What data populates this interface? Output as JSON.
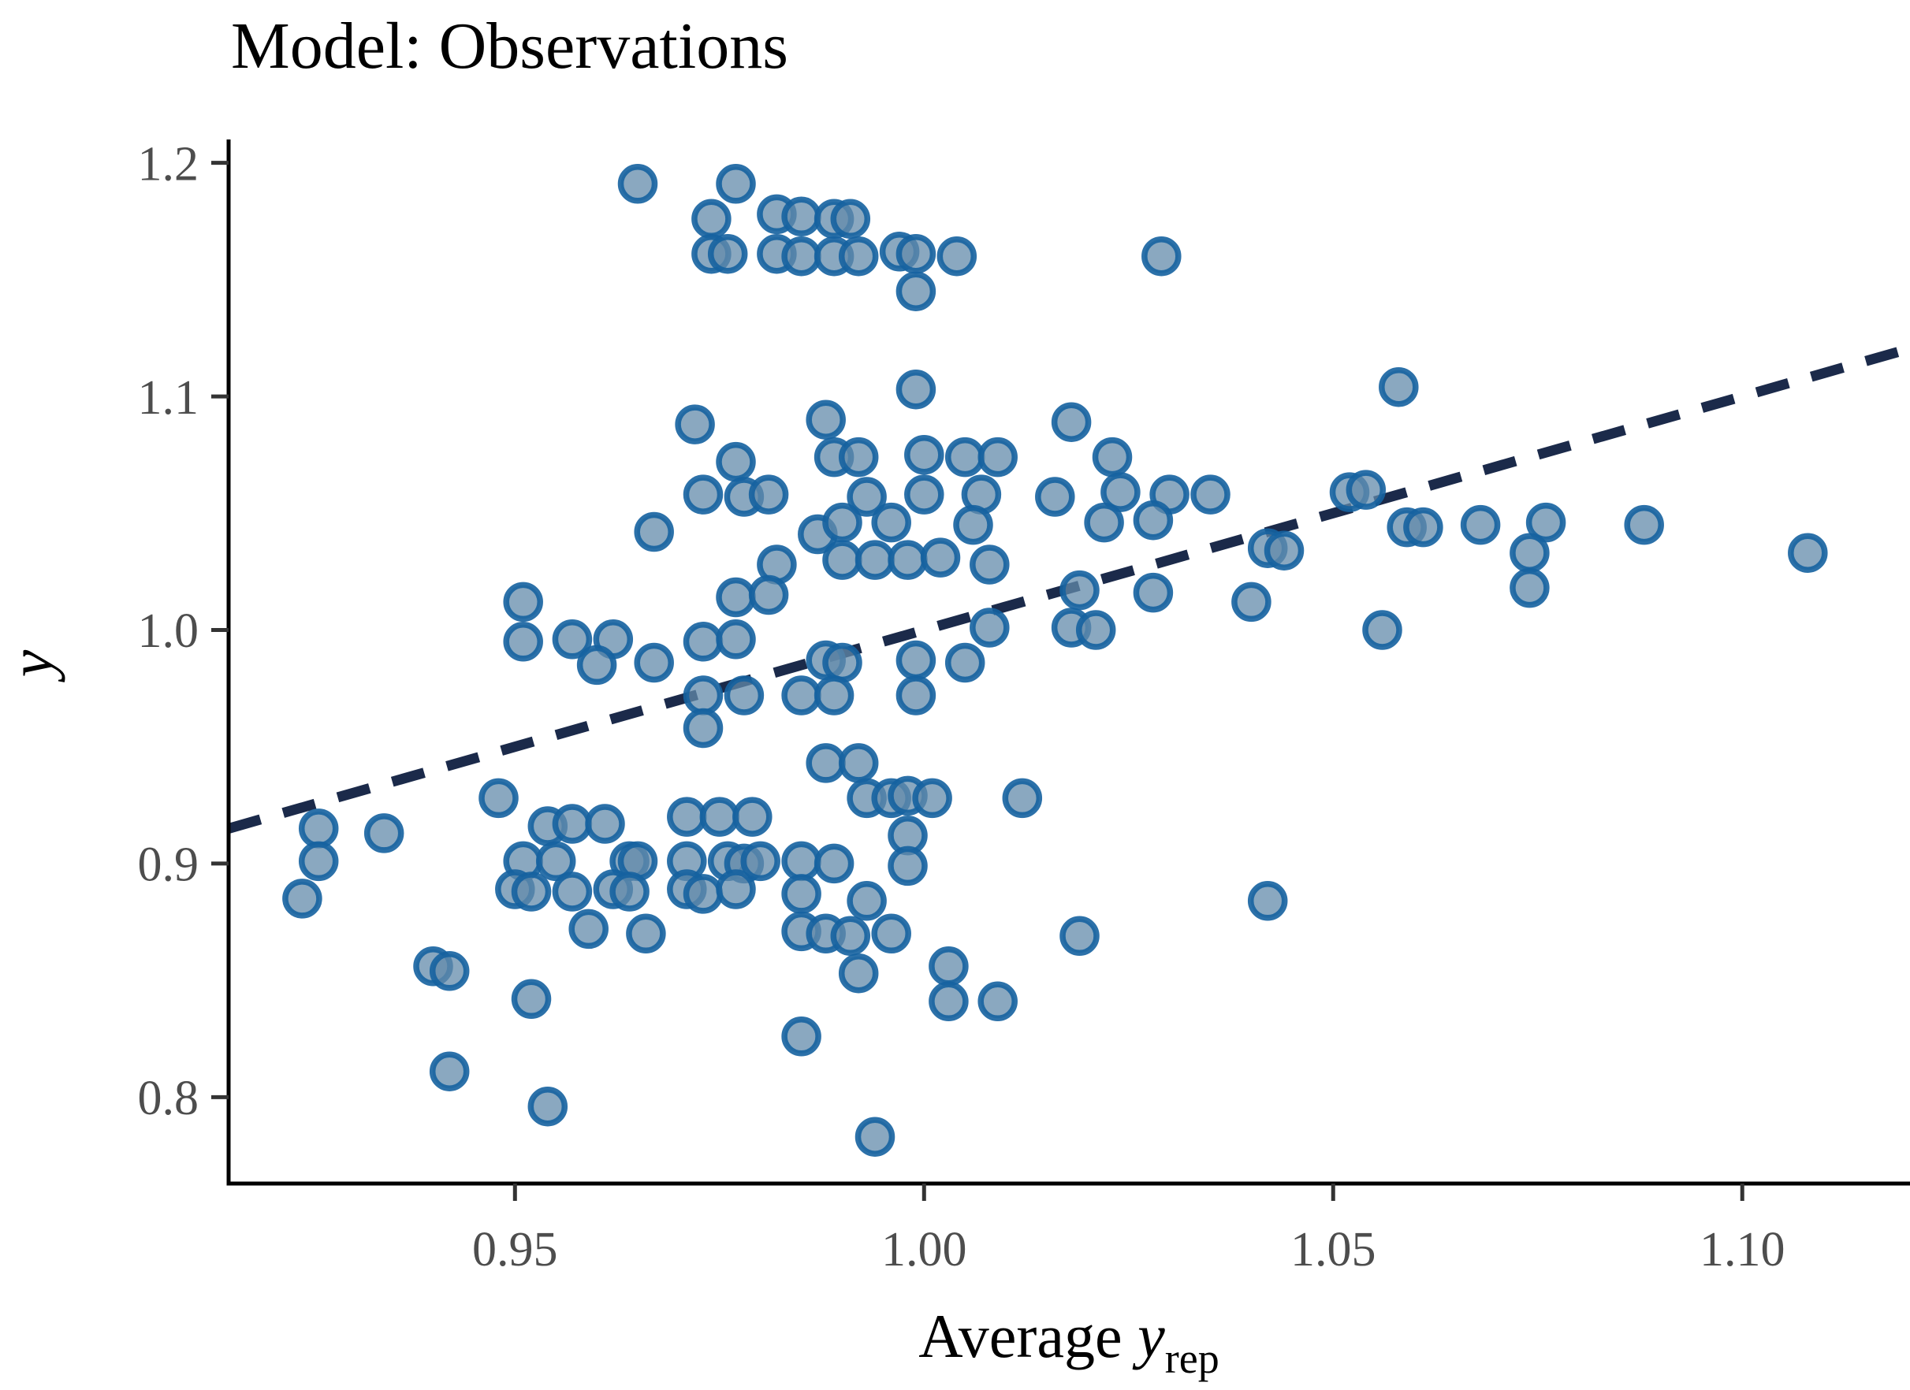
{
  "chart_data": {
    "type": "scatter",
    "title": "Model: Observations",
    "xlabel": "Average y_rep",
    "xlabel_parts": {
      "prefix": "Average ",
      "variable": "y",
      "subscript": "rep"
    },
    "ylabel": "y",
    "xlim": [
      0.915,
      1.1205
    ],
    "ylim": [
      0.763,
      1.21
    ],
    "x_ticks": [
      {
        "value": 0.95,
        "label": "0.95"
      },
      {
        "value": 1.0,
        "label": "1.00"
      },
      {
        "value": 1.05,
        "label": "1.05"
      },
      {
        "value": 1.1,
        "label": "1.10"
      }
    ],
    "y_ticks": [
      {
        "value": 0.8,
        "label": "0.8"
      },
      {
        "value": 0.9,
        "label": "0.9"
      },
      {
        "value": 1.0,
        "label": "1.0"
      },
      {
        "value": 1.1,
        "label": "1.1"
      },
      {
        "value": 1.2,
        "label": "1.2"
      }
    ],
    "grid": "off",
    "legend": "none",
    "reference_line": {
      "type": "identity y = x",
      "style": "dashed",
      "color": "#1b2a4a",
      "width": 13,
      "dash": [
        42,
        30
      ],
      "x1": 0.915,
      "y1": 0.915,
      "x2": 1.1205,
      "y2": 1.1205
    },
    "point_style": {
      "radius": 21.5,
      "stroke_width": 7.5,
      "fill": "#638bab",
      "fill_opacity": 0.75,
      "stroke": "#1562a0",
      "stroke_opacity": 0.9
    },
    "axis_style": {
      "line_color": "#000000",
      "tick_color": "#333333",
      "label_color": "#4d4d4d"
    },
    "points": [
      [
        0.965,
        1.191
      ],
      [
        0.977,
        1.191
      ],
      [
        0.974,
        1.176
      ],
      [
        0.982,
        1.178
      ],
      [
        0.985,
        1.177
      ],
      [
        0.989,
        1.176
      ],
      [
        0.991,
        1.176
      ],
      [
        0.974,
        1.161
      ],
      [
        0.976,
        1.161
      ],
      [
        0.982,
        1.161
      ],
      [
        0.985,
        1.16
      ],
      [
        0.989,
        1.16
      ],
      [
        0.992,
        1.16
      ],
      [
        0.997,
        1.162
      ],
      [
        0.999,
        1.161
      ],
      [
        1.004,
        1.16
      ],
      [
        1.029,
        1.16
      ],
      [
        0.999,
        1.145
      ],
      [
        0.999,
        1.103
      ],
      [
        1.058,
        1.104
      ],
      [
        0.972,
        1.088
      ],
      [
        0.988,
        1.09
      ],
      [
        1.018,
        1.089
      ],
      [
        0.977,
        1.072
      ],
      [
        0.989,
        1.074
      ],
      [
        0.992,
        1.074
      ],
      [
        1.0,
        1.075
      ],
      [
        1.005,
        1.074
      ],
      [
        1.009,
        1.074
      ],
      [
        1.023,
        1.074
      ],
      [
        0.973,
        1.058
      ],
      [
        0.978,
        1.057
      ],
      [
        0.981,
        1.058
      ],
      [
        0.993,
        1.057
      ],
      [
        1.0,
        1.058
      ],
      [
        1.007,
        1.058
      ],
      [
        1.016,
        1.057
      ],
      [
        1.024,
        1.059
      ],
      [
        1.03,
        1.058
      ],
      [
        1.035,
        1.058
      ],
      [
        1.052,
        1.059
      ],
      [
        0.967,
        1.042
      ],
      [
        0.987,
        1.041
      ],
      [
        0.99,
        1.046
      ],
      [
        0.996,
        1.046
      ],
      [
        1.006,
        1.045
      ],
      [
        1.022,
        1.046
      ],
      [
        1.028,
        1.047
      ],
      [
        1.042,
        1.035
      ],
      [
        1.044,
        1.034
      ],
      [
        1.059,
        1.044
      ],
      [
        1.061,
        1.044
      ],
      [
        1.068,
        1.045
      ],
      [
        1.076,
        1.046
      ],
      [
        1.088,
        1.045
      ],
      [
        1.074,
        1.033
      ],
      [
        1.074,
        1.018
      ],
      [
        1.108,
        1.033
      ],
      [
        1.054,
        1.06
      ],
      [
        0.982,
        1.028
      ],
      [
        0.99,
        1.03
      ],
      [
        0.994,
        1.03
      ],
      [
        0.998,
        1.03
      ],
      [
        1.002,
        1.031
      ],
      [
        1.008,
        1.028
      ],
      [
        0.951,
        1.012
      ],
      [
        0.977,
        1.014
      ],
      [
        0.981,
        1.015
      ],
      [
        1.019,
        1.017
      ],
      [
        1.028,
        1.016
      ],
      [
        1.04,
        1.012
      ],
      [
        1.008,
        1.001
      ],
      [
        1.018,
        1.001
      ],
      [
        1.021,
        1.0
      ],
      [
        1.056,
        1.0
      ],
      [
        0.951,
        0.995
      ],
      [
        0.957,
        0.996
      ],
      [
        0.962,
        0.996
      ],
      [
        0.973,
        0.995
      ],
      [
        0.977,
        0.996
      ],
      [
        0.96,
        0.985
      ],
      [
        0.967,
        0.986
      ],
      [
        0.988,
        0.987
      ],
      [
        0.99,
        0.986
      ],
      [
        0.999,
        0.987
      ],
      [
        1.005,
        0.986
      ],
      [
        0.973,
        0.972
      ],
      [
        0.978,
        0.972
      ],
      [
        0.985,
        0.972
      ],
      [
        0.989,
        0.972
      ],
      [
        0.999,
        0.972
      ],
      [
        0.973,
        0.958
      ],
      [
        0.988,
        0.943
      ],
      [
        0.992,
        0.943
      ],
      [
        0.948,
        0.928
      ],
      [
        0.993,
        0.928
      ],
      [
        0.996,
        0.928
      ],
      [
        0.998,
        0.929
      ],
      [
        1.001,
        0.928
      ],
      [
        1.012,
        0.928
      ],
      [
        0.926,
        0.915
      ],
      [
        0.934,
        0.913
      ],
      [
        0.954,
        0.916
      ],
      [
        0.957,
        0.917
      ],
      [
        0.961,
        0.917
      ],
      [
        0.971,
        0.92
      ],
      [
        0.975,
        0.92
      ],
      [
        0.979,
        0.92
      ],
      [
        0.998,
        0.912
      ],
      [
        0.926,
        0.901
      ],
      [
        0.951,
        0.901
      ],
      [
        0.955,
        0.901
      ],
      [
        0.964,
        0.901
      ],
      [
        0.965,
        0.901
      ],
      [
        0.971,
        0.901
      ],
      [
        0.976,
        0.901
      ],
      [
        0.978,
        0.9
      ],
      [
        0.98,
        0.901
      ],
      [
        0.985,
        0.901
      ],
      [
        0.989,
        0.9
      ],
      [
        0.998,
        0.899
      ],
      [
        0.924,
        0.885
      ],
      [
        0.95,
        0.889
      ],
      [
        0.952,
        0.888
      ],
      [
        0.957,
        0.888
      ],
      [
        0.962,
        0.889
      ],
      [
        0.964,
        0.888
      ],
      [
        0.971,
        0.889
      ],
      [
        0.973,
        0.887
      ],
      [
        0.977,
        0.889
      ],
      [
        0.985,
        0.887
      ],
      [
        0.993,
        0.884
      ],
      [
        1.042,
        0.884
      ],
      [
        0.959,
        0.872
      ],
      [
        0.966,
        0.87
      ],
      [
        0.985,
        0.871
      ],
      [
        0.988,
        0.87
      ],
      [
        0.991,
        0.869
      ],
      [
        0.996,
        0.87
      ],
      [
        1.019,
        0.869
      ],
      [
        0.94,
        0.856
      ],
      [
        0.942,
        0.854
      ],
      [
        0.992,
        0.853
      ],
      [
        1.003,
        0.856
      ],
      [
        0.952,
        0.842
      ],
      [
        1.003,
        0.841
      ],
      [
        1.009,
        0.841
      ],
      [
        0.985,
        0.826
      ],
      [
        0.942,
        0.811
      ],
      [
        0.954,
        0.796
      ],
      [
        0.994,
        0.783
      ]
    ]
  }
}
